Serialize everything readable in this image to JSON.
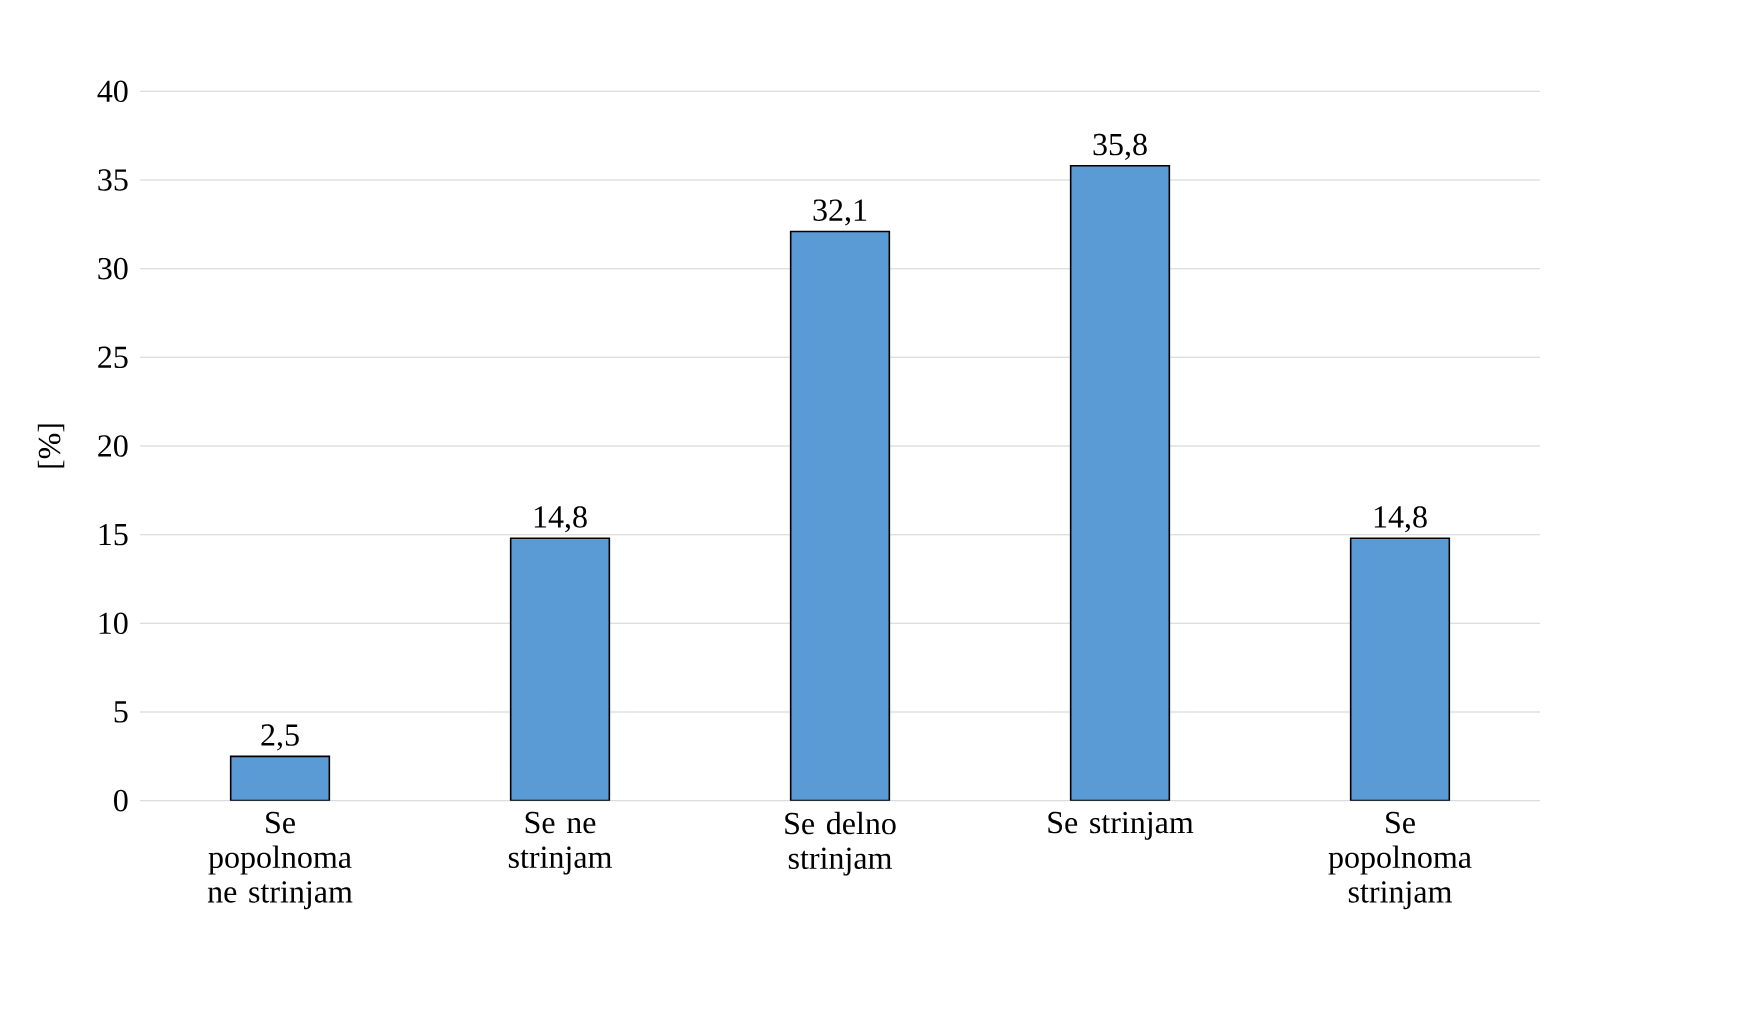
{
  "chart_data": {
    "type": "bar",
    "ylabel": "[%]",
    "categories": [
      "Se popolnoma ne strinjam",
      "Se ne strinjam",
      "Se delno strinjam",
      "Se strinjam",
      "Se popolnoma strinjam"
    ],
    "values": [
      2.5,
      14.8,
      32.1,
      35.8,
      14.8
    ],
    "value_labels": [
      "2,5",
      "14,8",
      "32,1",
      "35,8",
      "14,8"
    ],
    "color": "#5b9bd5",
    "ylim": [
      0,
      40
    ],
    "yticks": [
      0,
      5,
      10,
      15,
      20,
      25,
      30,
      35,
      40
    ],
    "grid": "y"
  }
}
